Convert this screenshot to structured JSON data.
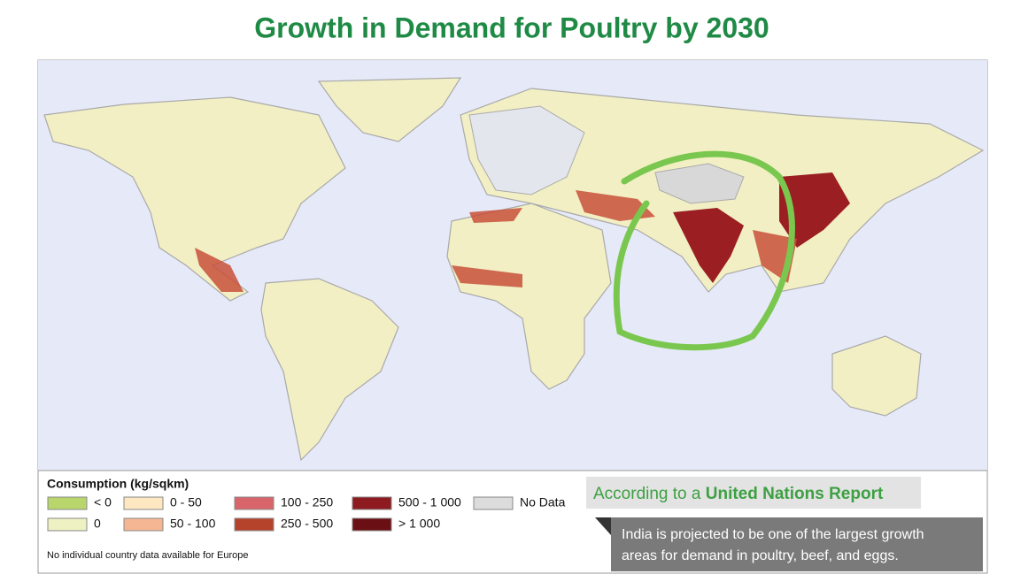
{
  "title": "Growth in Demand for Poultry by 2030",
  "legend": {
    "title": "Consumption (kg/sqkm)",
    "items": [
      {
        "label": "< 0",
        "color": "#b8d66c"
      },
      {
        "label": "0",
        "color": "#eef2c2"
      },
      {
        "label": "0 - 50",
        "color": "#fde8c2"
      },
      {
        "label": "50 - 100",
        "color": "#f5b694"
      },
      {
        "label": "100 - 250",
        "color": "#d8656a"
      },
      {
        "label": "250 - 500",
        "color": "#b5432c"
      },
      {
        "label": "500 - 1 000",
        "color": "#8d1b20"
      },
      {
        "label": "> 1 000",
        "color": "#6a0f14"
      },
      {
        "label": "No Data",
        "color": "#dcdcdc"
      }
    ],
    "note": "No individual country data available for Europe"
  },
  "callout": {
    "prefix": "According to a ",
    "highlight": "United Nations Report",
    "body": [
      "India is projected to be one of the largest growth",
      "areas for demand in poultry, beef, and eggs."
    ]
  }
}
